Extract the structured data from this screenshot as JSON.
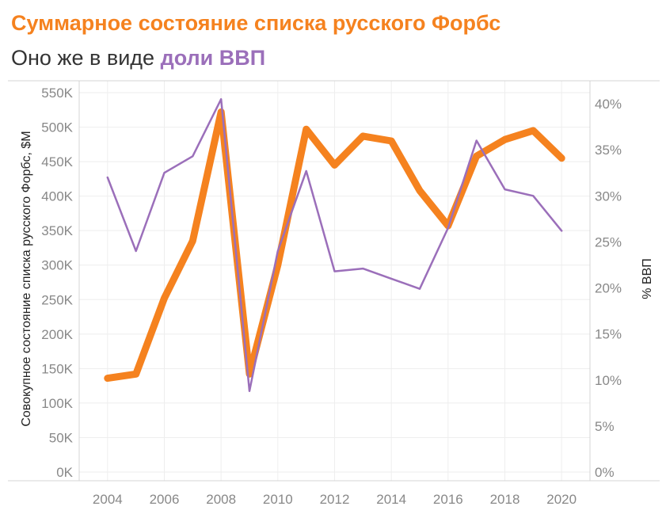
{
  "header": {
    "title": "Суммарное состояние списка русского Форбс",
    "subtitle_prefix": "Оно же в виде ",
    "subtitle_highlight": "доли ВВП"
  },
  "colors": {
    "orange": "#F5821F",
    "purple": "#9B6FBA",
    "text": "#333333",
    "tick": "#888888",
    "grid": "#EEEEEE",
    "axis": "#D4D4D4"
  },
  "chart_data": {
    "type": "line",
    "x": [
      2004,
      2005,
      2006,
      2007,
      2008,
      2009,
      2010,
      2011,
      2012,
      2013,
      2014,
      2015,
      2016,
      2017,
      2018,
      2019,
      2020
    ],
    "x_ticks": [
      2004,
      2006,
      2008,
      2010,
      2012,
      2014,
      2016,
      2018,
      2020
    ],
    "x_tick_labels": [
      "2004",
      "2006",
      "2008",
      "2010",
      "2012",
      "2014",
      "2016",
      "2018",
      "2020"
    ],
    "xlim": [
      2003,
      2021
    ],
    "y_left": {
      "label": "Совокупное состояние списка русского Форбс, $M",
      "ylim": [
        0,
        560000
      ],
      "ticks": [
        0,
        50000,
        100000,
        150000,
        200000,
        250000,
        300000,
        350000,
        400000,
        450000,
        500000,
        550000
      ],
      "tick_labels": [
        "0K",
        "50K",
        "100K",
        "150K",
        "200K",
        "250K",
        "300K",
        "350K",
        "400K",
        "450K",
        "500K",
        "550K"
      ]
    },
    "y_right": {
      "label": "% ВВП",
      "ylim": [
        0,
        0.41
      ],
      "ticks": [
        0,
        0.05,
        0.1,
        0.15,
        0.2,
        0.25,
        0.3,
        0.35,
        0.4
      ],
      "tick_labels": [
        "0%",
        "5%",
        "10%",
        "15%",
        "20%",
        "25%",
        "30%",
        "35%",
        "40%"
      ]
    },
    "series": [
      {
        "axis": "left",
        "color": "#F5821F",
        "emphasis": "thick",
        "values": [
          136000,
          142000,
          252000,
          335000,
          522000,
          142000,
          300000,
          497000,
          445000,
          487000,
          480000,
          408000,
          357000,
          458000,
          482000,
          495000,
          455000
        ]
      },
      {
        "axis": "right",
        "color": "#9B6FBA",
        "emphasis": "thin",
        "values": [
          0.32,
          0.24,
          0.325,
          0.343,
          0.405,
          0.088,
          0.24,
          0.327,
          0.218,
          0.221,
          0.21,
          0.199,
          0.265,
          0.36,
          0.307,
          0.3,
          0.262
        ]
      }
    ],
    "grid": true,
    "legend": "none"
  }
}
